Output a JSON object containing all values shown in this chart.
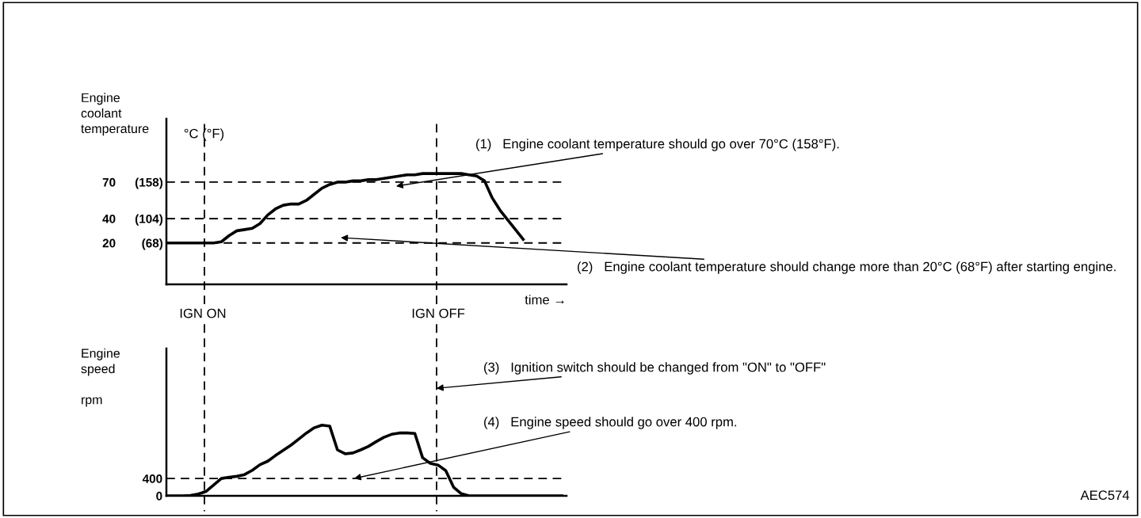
{
  "chart_data": [
    {
      "type": "line",
      "ylabel": "Engine\ncoolant\ntemperature",
      "xlabel": "time →",
      "categories": [
        null,
        null,
        null,
        null,
        null,
        null,
        null,
        null,
        null,
        null,
        null,
        null,
        null,
        null,
        null,
        null,
        null,
        null,
        null,
        null,
        null,
        null,
        null,
        null,
        null,
        null,
        null,
        null,
        null,
        null,
        null,
        null,
        null,
        null,
        null,
        null,
        null,
        null,
        null,
        null,
        null,
        null,
        null,
        null,
        null,
        null,
        null,
        null,
        null,
        null,
        null,
        null
      ],
      "series": [
        {
          "color": "#000000",
          "values": [
            20,
            20,
            20,
            20,
            20,
            20,
            20,
            21,
            26,
            30,
            31,
            32,
            36,
            43,
            48,
            51,
            52,
            52,
            55,
            60,
            65,
            68,
            70,
            70,
            71,
            71,
            72,
            72,
            73,
            74,
            75,
            76,
            76,
            77,
            77,
            77,
            77,
            77,
            77,
            76,
            75,
            71,
            57,
            47,
            39,
            31,
            23,
            null,
            null,
            null,
            null,
            null
          ]
        }
      ],
      "ylim": [
        -14,
        122
      ],
      "yticks": [
        20,
        40,
        70
      ],
      "y2lim": [
        6.8,
        251.6
      ],
      "y2ticks": [
        {
          "value": 68,
          "label": "(68)"
        },
        {
          "value": 104,
          "label": "(104)"
        },
        {
          "value": 158,
          "label": "(158)"
        }
      ],
      "ref_lines": [
        {
          "axis": "y",
          "value": 20,
          "color": "#000000",
          "line_style": "dashed"
        },
        {
          "axis": "y",
          "value": 40,
          "color": "#000000",
          "line_style": "dashed"
        },
        {
          "axis": "y",
          "value": 70,
          "color": "#000000",
          "line_style": "dashed"
        }
      ],
      "annotations": [
        "°C (°F)",
        "(1)   Engine coolant temperature should go over 70°C (158°F).",
        "(2)   Engine coolant temperature should change more than 20°C (68°F) after starting engine.",
        "IGN ON",
        "IGN OFF"
      ],
      "tick_labels": "y",
      "grid": false,
      "legend": false,
      "marker": "none",
      "line_style": "solid"
    },
    {
      "type": "line",
      "ylabel": "Engine\nspeed\n\nrpm",
      "categories": [
        null,
        null,
        null,
        null,
        null,
        null,
        null,
        null,
        null,
        null,
        null,
        null,
        null,
        null,
        null,
        null,
        null,
        null,
        null,
        null,
        null,
        null,
        null,
        null,
        null,
        null,
        null,
        null,
        null,
        null,
        null,
        null,
        null,
        null,
        null,
        null,
        null,
        null,
        null,
        null,
        null,
        null,
        null,
        null,
        null,
        null,
        null,
        null,
        null,
        null,
        null,
        null
      ],
      "series": [
        {
          "color": "#000000",
          "values": [
            0,
            0,
            0,
            10,
            40,
            100,
            250,
            400,
            430,
            450,
            490,
            590,
            720,
            800,
            930,
            1050,
            1170,
            1310,
            1450,
            1570,
            1630,
            1610,
            1060,
            970,
            990,
            1060,
            1140,
            1250,
            1350,
            1420,
            1450,
            1450,
            1440,
            880,
            750,
            710,
            580,
            200,
            50,
            0,
            0,
            0,
            0,
            0,
            0,
            0,
            0,
            0,
            0,
            0,
            0,
            0
          ]
        }
      ],
      "ylim": [
        0,
        3400
      ],
      "yticks": [
        0,
        400
      ],
      "ref_lines": [
        {
          "axis": "y",
          "value": 400,
          "color": "#000000",
          "line_style": "dashed"
        }
      ],
      "annotations": [
        "(3)   Ignition switch should be changed from \"ON\" to \"OFF\"",
        "(4)   Engine speed should go over 400 rpm.",
        "AEC574"
      ],
      "tick_labels": "y",
      "grid": false,
      "legend": false,
      "marker": "none",
      "line_style": "solid"
    }
  ]
}
